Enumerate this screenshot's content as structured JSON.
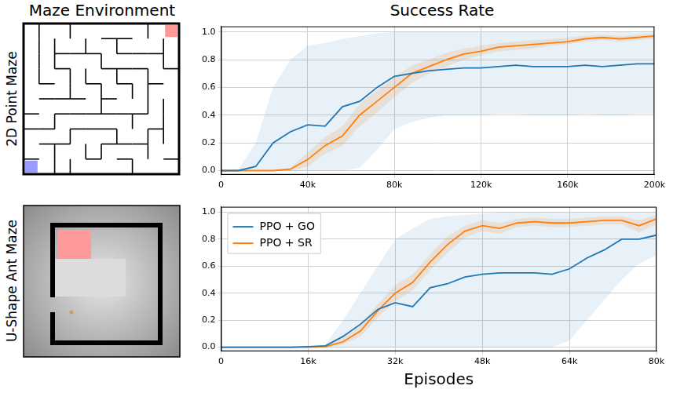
{
  "figure": {
    "column_titles": [
      "Maze Environment",
      "Success Rate"
    ],
    "row_labels": [
      "2D Point Maze",
      "U-Shape Ant Maze"
    ]
  },
  "chart_data": [
    {
      "type": "line",
      "x": [
        0,
        8000,
        16000,
        24000,
        32000,
        40000,
        48000,
        56000,
        64000,
        72000,
        80000,
        88000,
        96000,
        104000,
        112000,
        120000,
        128000,
        136000,
        144000,
        152000,
        160000,
        168000,
        176000,
        184000,
        192000,
        200000
      ],
      "series": [
        {
          "color": "#1f77b4",
          "values": [
            0,
            0,
            0.03,
            0.2,
            0.28,
            0.33,
            0.32,
            0.46,
            0.5,
            0.6,
            0.68,
            0.7,
            0.72,
            0.73,
            0.74,
            0.74,
            0.75,
            0.76,
            0.75,
            0.75,
            0.75,
            0.76,
            0.75,
            0.76,
            0.77,
            0.77
          ],
          "lower": [
            0,
            0,
            0,
            0,
            0,
            0,
            0,
            0,
            0.02,
            0.15,
            0.3,
            0.35,
            0.38,
            0.4,
            0.4,
            0.4,
            0.41,
            0.41,
            0.4,
            0.4,
            0.4,
            0.41,
            0.4,
            0.4,
            0.41,
            0.41
          ],
          "upper": [
            0,
            0.01,
            0.2,
            0.6,
            0.8,
            0.9,
            0.92,
            0.95,
            0.97,
            0.99,
            1,
            1,
            1,
            1,
            1,
            1,
            1,
            1,
            1,
            1,
            1,
            1,
            1,
            1,
            1,
            1
          ]
        },
        {
          "color": "#ff7f0e",
          "values": [
            0,
            0,
            0,
            0,
            0.01,
            0.08,
            0.18,
            0.25,
            0.4,
            0.5,
            0.6,
            0.7,
            0.75,
            0.8,
            0.84,
            0.86,
            0.89,
            0.9,
            0.91,
            0.92,
            0.93,
            0.95,
            0.96,
            0.95,
            0.96,
            0.97
          ],
          "lower": [
            0,
            0,
            0,
            0,
            0,
            0.03,
            0.12,
            0.18,
            0.32,
            0.42,
            0.53,
            0.63,
            0.7,
            0.75,
            0.8,
            0.83,
            0.86,
            0.87,
            0.88,
            0.9,
            0.91,
            0.93,
            0.94,
            0.93,
            0.94,
            0.95
          ],
          "upper": [
            0,
            0,
            0,
            0,
            0.02,
            0.13,
            0.24,
            0.32,
            0.48,
            0.58,
            0.67,
            0.76,
            0.8,
            0.85,
            0.88,
            0.9,
            0.92,
            0.93,
            0.94,
            0.95,
            0.96,
            0.97,
            0.98,
            0.97,
            0.98,
            0.99
          ]
        }
      ],
      "xlim": [
        0,
        200000
      ],
      "xticks": [
        0,
        {
          "value": 40000,
          "label": "40k"
        },
        {
          "value": 80000,
          "label": "80k"
        },
        {
          "value": 120000,
          "label": "120k"
        },
        {
          "value": 160000,
          "label": "160k"
        },
        {
          "value": 200000,
          "label": "200k"
        }
      ],
      "ylim": [
        -0.03,
        1.04
      ],
      "yticks": [
        {
          "value": 0,
          "label": "0.0"
        },
        0.2,
        0.4,
        0.6,
        0.8,
        {
          "value": 1,
          "label": "1.0"
        }
      ],
      "grid": true
    },
    {
      "type": "line",
      "x_label": "Episodes",
      "x": [
        0,
        3200,
        6400,
        9600,
        12800,
        16000,
        19200,
        22400,
        25600,
        28800,
        32000,
        35200,
        38400,
        41600,
        44800,
        48000,
        51200,
        54400,
        57600,
        60800,
        64000,
        67200,
        70400,
        73600,
        76800,
        80000
      ],
      "series": [
        {
          "name": "PPO + GO",
          "color": "#1f77b4",
          "values": [
            0,
            0,
            0,
            0,
            0,
            0.005,
            0.01,
            0.08,
            0.17,
            0.28,
            0.33,
            0.3,
            0.44,
            0.47,
            0.52,
            0.54,
            0.55,
            0.55,
            0.55,
            0.54,
            0.58,
            0.66,
            0.72,
            0.8,
            0.8,
            0.83
          ],
          "lower": [
            0,
            0,
            0,
            0,
            0,
            0,
            0,
            0,
            0,
            0,
            0,
            0,
            0,
            0,
            0,
            0,
            0,
            0,
            0,
            0,
            0.05,
            0.2,
            0.35,
            0.5,
            0.62,
            0.68
          ],
          "upper": [
            0,
            0,
            0,
            0,
            0,
            0,
            0.02,
            0.2,
            0.4,
            0.6,
            0.8,
            0.88,
            0.95,
            0.97,
            0.98,
            0.99,
            1,
            1,
            1,
            1,
            1,
            1,
            1,
            1,
            1,
            1
          ]
        },
        {
          "name": "PPO + SR",
          "color": "#ff7f0e",
          "values": [
            0,
            0,
            0,
            0,
            0,
            0,
            0.005,
            0.04,
            0.12,
            0.27,
            0.4,
            0.48,
            0.63,
            0.76,
            0.86,
            0.9,
            0.88,
            0.92,
            0.93,
            0.92,
            0.92,
            0.93,
            0.94,
            0.94,
            0.9,
            0.95
          ],
          "lower": [
            0,
            0,
            0,
            0,
            0,
            0,
            0,
            0.02,
            0.08,
            0.22,
            0.34,
            0.42,
            0.57,
            0.7,
            0.81,
            0.86,
            0.84,
            0.89,
            0.9,
            0.89,
            0.89,
            0.9,
            0.91,
            0.91,
            0.85,
            0.91
          ],
          "upper": [
            0,
            0,
            0,
            0,
            0,
            0,
            0.01,
            0.07,
            0.17,
            0.32,
            0.46,
            0.54,
            0.69,
            0.82,
            0.9,
            0.94,
            0.92,
            0.95,
            0.96,
            0.95,
            0.95,
            0.96,
            0.97,
            0.97,
            0.94,
            0.98
          ]
        }
      ],
      "xlim": [
        0,
        80000
      ],
      "xticks": [
        0,
        {
          "value": 16000,
          "label": "16k"
        },
        {
          "value": 32000,
          "label": "32k"
        },
        {
          "value": 48000,
          "label": "48k"
        },
        {
          "value": 64000,
          "label": "64k"
        },
        {
          "value": 80000,
          "label": "80k"
        }
      ],
      "ylim": [
        -0.03,
        1.04
      ],
      "yticks": [
        {
          "value": 0,
          "label": "0.0"
        },
        0.2,
        0.4,
        0.6,
        0.8,
        {
          "value": 1,
          "label": "1.0"
        }
      ],
      "grid": true,
      "legend": "upper left"
    }
  ]
}
